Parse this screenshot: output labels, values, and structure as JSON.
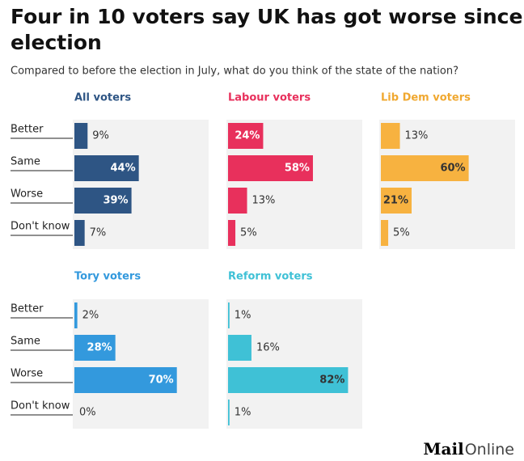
{
  "title": "Four in 10 voters say UK has got worse since election",
  "subtitle": "Compared to before the election in July, what do you think of the state of the nation?",
  "logo": {
    "bold": "Mail",
    "light": "Online"
  },
  "chart_data": [
    {
      "type": "bar",
      "title": "All voters",
      "categories": [
        "Better",
        "Same",
        "Worse",
        "Don't know"
      ],
      "values": [
        9,
        44,
        39,
        7
      ],
      "value_labels": [
        "9%",
        "44%",
        "39%",
        "7%"
      ],
      "color": "#2e5584",
      "label_color": "#ffffff",
      "xlim": [
        0,
        100
      ]
    },
    {
      "type": "bar",
      "title": "Labour voters",
      "values": [
        24,
        58,
        13,
        5
      ],
      "value_labels": [
        "24%",
        "58%",
        "13%",
        "5%"
      ],
      "color": "#e8305c",
      "label_color": "#ffffff",
      "xlim": [
        0,
        100
      ]
    },
    {
      "type": "bar",
      "title": "Lib Dem voters",
      "values": [
        13,
        60,
        21,
        5
      ],
      "value_labels": [
        "13%",
        "60%",
        "21%",
        "5%"
      ],
      "color": "#f7b240",
      "label_color": "#333333",
      "xlim": [
        0,
        100
      ]
    },
    {
      "type": "bar",
      "title": "Tory voters",
      "categories": [
        "Better",
        "Same",
        "Worse",
        "Don't know"
      ],
      "values": [
        2,
        28,
        70,
        0
      ],
      "value_labels": [
        "2%",
        "28%",
        "70%",
        "0%"
      ],
      "color": "#3399dd",
      "label_color": "#ffffff",
      "xlim": [
        0,
        100
      ]
    },
    {
      "type": "bar",
      "title": "Reform voters",
      "values": [
        1,
        16,
        82,
        1
      ],
      "value_labels": [
        "1%",
        "16%",
        "82%",
        "1%"
      ],
      "color": "#3fc1d6",
      "label_color": "#333333",
      "xlim": [
        0,
        100
      ]
    }
  ]
}
